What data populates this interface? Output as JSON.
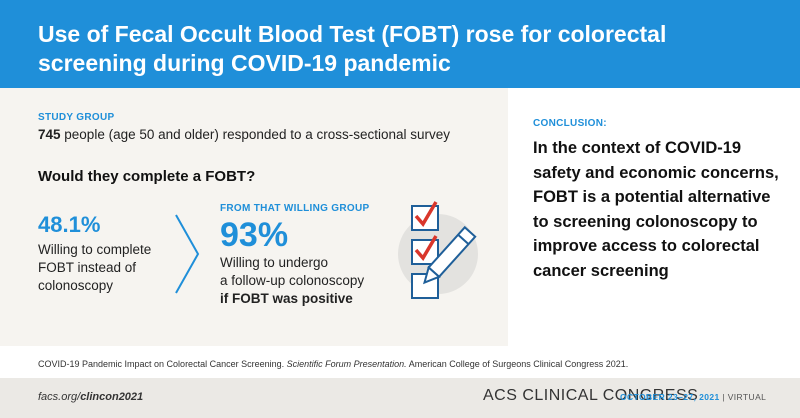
{
  "header": {
    "title": "Use of Fecal Occult Blood Test (FOBT) rose for colorectal screening during COVID-19 pandemic"
  },
  "study": {
    "label": "STUDY GROUP",
    "count": "745",
    "text": " people (age 50 and older) responded to a cross-sectional survey"
  },
  "question": "Would they complete a FOBT?",
  "left_stat": {
    "value": "48.1%",
    "description": "Willing to complete FOBT instead of colonoscopy"
  },
  "right_stat": {
    "label": "FROM THAT WILLING GROUP",
    "value": "93%",
    "line1": "Willing to undergo",
    "line2": "a follow-up colonoscopy",
    "line3": "if FOBT was positive"
  },
  "conclusion": {
    "label": "CONCLUSION:",
    "text": "In the context of COVID-19 safety and economic concerns, FOBT is a potential alternative to screening colonoscopy to improve access to colorectal cancer screening"
  },
  "citation": {
    "part1": "COVID-19 Pandemic Impact on Colorectal Cancer Screening. ",
    "italic": "Scientific Forum Presentation.",
    "part2": " American College of Surgeons Clinical Congress 2021."
  },
  "footer": {
    "url_prefix": "facs.org/",
    "url_bold": "clincon2021",
    "brand": "ACS CLINICAL CONGRESS",
    "dates": "OCTOBER 23–27, 2021",
    "separator": " | ",
    "mode": "VIRTUAL"
  },
  "colors": {
    "accent": "#1f8fd9",
    "check_red": "#d9362b",
    "panel_bg": "#f6f4f0"
  },
  "icons": {
    "chevron": "chevron-right-icon",
    "checklist": "checklist-pencil-icon"
  }
}
